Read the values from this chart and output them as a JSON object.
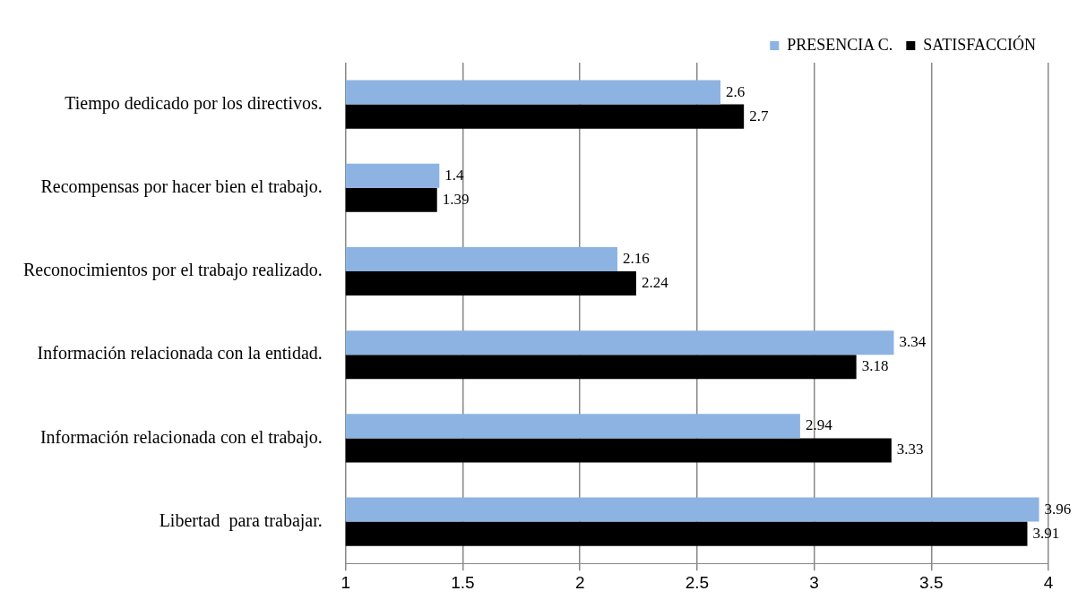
{
  "chart_data": {
    "type": "bar",
    "orientation": "horizontal",
    "categories": [
      "Tiempo dedicado por los directivos.",
      "Recompensas por hacer bien el trabajo.",
      "Reconocimientos por el trabajo realizado.",
      "Información relacionada con la entidad.",
      "Información relacionada con el trabajo.",
      "Libertad  para trabajar."
    ],
    "series": [
      {
        "name": "PRESENCIA C.",
        "color": "#8db3e2",
        "values": [
          2.6,
          1.4,
          2.16,
          3.34,
          2.94,
          3.96
        ]
      },
      {
        "name": "SATISFACCIÓN",
        "color": "#000000",
        "values": [
          2.7,
          1.39,
          2.24,
          3.18,
          3.33,
          3.91
        ]
      }
    ],
    "xlim": [
      1,
      4
    ],
    "xticks": [
      1,
      1.5,
      2,
      2.5,
      3,
      3.5,
      4
    ],
    "grid": "x",
    "legend": "top right",
    "data_labels": true
  }
}
